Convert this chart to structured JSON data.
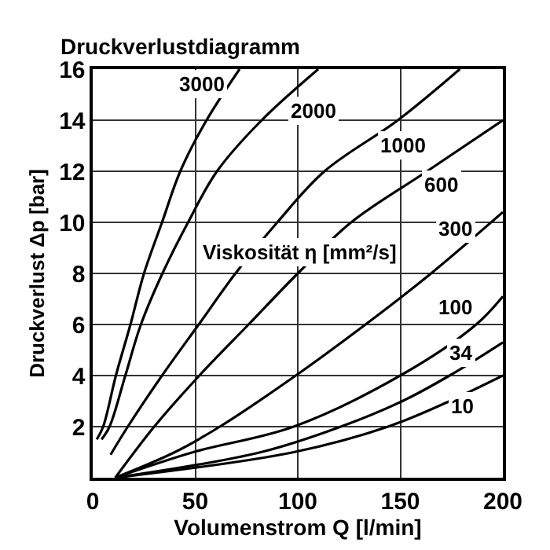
{
  "chart_data": {
    "type": "line",
    "title": "Druckverlustdiagramm",
    "xlabel": "Volumenstrom Q [l/min]",
    "ylabel": "Druckverlust Δp [bar]",
    "xlim": [
      0,
      200
    ],
    "ylim": [
      0,
      16
    ],
    "xticks": [
      0,
      50,
      100,
      150,
      200
    ],
    "yticks": [
      2,
      4,
      6,
      8,
      10,
      12,
      14,
      16
    ],
    "grid": true,
    "marker": "none",
    "line_style": "solid",
    "series": [
      {
        "color": "#000000",
        "x": [
          2,
          5.1,
          11.3,
          18.4,
          25,
          33.8,
          42.7,
          55.5,
          71.6
        ],
        "values": [
          1.5,
          2,
          4,
          6,
          8,
          10,
          12,
          14,
          16
        ]
      },
      {
        "color": "#000000",
        "x": [
          4.3,
          8.2,
          15.9,
          23.5,
          34,
          46.5,
          60.6,
          82.4,
          110
        ],
        "values": [
          1.5,
          2,
          4,
          6,
          8,
          10,
          12,
          14,
          16
        ]
      },
      {
        "color": "#000000",
        "x": [
          8.7,
          17.1,
          33.8,
          51.7,
          69.6,
          90,
          113,
          148.8,
          179
        ],
        "values": [
          0.9,
          2,
          4,
          6,
          8,
          10,
          12,
          14,
          16
        ]
      },
      {
        "color": "#000000",
        "x": [
          11,
          30,
          52,
          76,
          100,
          126,
          163,
          200
        ],
        "values": [
          0,
          2,
          4,
          6,
          8,
          10,
          12,
          14
        ]
      },
      {
        "color": "#000000",
        "x": [
          11,
          40,
          62,
          99,
          133,
          165,
          200
        ],
        "values": [
          0,
          1,
          2,
          4,
          6,
          8,
          10.4
        ]
      },
      {
        "color": "#000000",
        "x": [
          11,
          49,
          98,
          150,
          187,
          200
        ],
        "values": [
          0,
          1,
          2,
          4,
          6,
          7.1
        ]
      },
      {
        "color": "#000000",
        "x": [
          11,
          82,
          121,
          151,
          174,
          200
        ],
        "values": [
          0,
          1,
          2,
          3,
          4,
          5.3
        ]
      },
      {
        "color": "#000000",
        "x": [
          11,
          98,
          144,
          174,
          200
        ],
        "values": [
          0,
          1,
          2,
          3,
          4
        ]
      }
    ],
    "annotations": [
      {
        "text": "3000",
        "x": 53,
        "y": 15.4
      },
      {
        "text": "2000",
        "x": 108,
        "y": 14.35
      },
      {
        "text": "1000",
        "x": 151,
        "y": 13
      },
      {
        "text": "600",
        "x": 170,
        "y": 11.45
      },
      {
        "text": "300",
        "x": 177,
        "y": 9.75
      },
      {
        "text": "100",
        "x": 177,
        "y": 6.7
      },
      {
        "text": "34",
        "x": 180,
        "y": 4.9
      },
      {
        "text": "10",
        "x": 180,
        "y": 2.8
      },
      "Viskosität η [mm²/s]"
    ]
  }
}
